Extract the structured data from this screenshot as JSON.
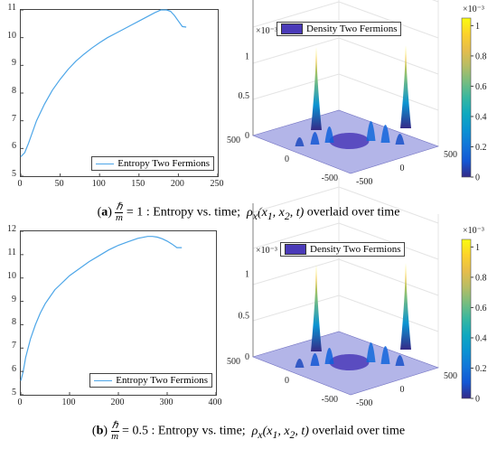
{
  "panels": [
    {
      "caption_label": "a",
      "caption_frac_num": "ℏ",
      "caption_frac_den": "m",
      "caption_value": "= 1",
      "caption_rest": ": Entropy vs. time;",
      "caption_math": "ρ",
      "caption_math_sub": "x",
      "caption_math_args": "(x",
      "caption_math_tail": "1, x2, t)",
      "caption_end": "overlaid over time",
      "caption_full": "(a) ℏ/m = 1 : Entropy vs. time; ρx(x1, x2, t) overlaid over time",
      "line_legend": "Entropy Two Fermions",
      "surface_legend": "Density Two Fermions",
      "colorbar_exponent": "×10⁻³",
      "zaxis_exponent": "×10⁻³"
    },
    {
      "caption_label": "b",
      "caption_frac_num": "ℏ",
      "caption_frac_den": "m",
      "caption_value": "= 0.5",
      "caption_rest": ": Entropy vs. time;",
      "caption_full": "(b) ℏ/m = 0.5 : Entropy vs. time; ρx(x1, x2, t) overlaid over time",
      "caption_end": "overlaid over time",
      "line_legend": "Entropy Two Fermions",
      "surface_legend": "Density Two Fermions",
      "colorbar_exponent": "×10⁻³",
      "zaxis_exponent": "×10⁻³"
    }
  ],
  "chart_data": [
    {
      "type": "line",
      "series": [
        {
          "name": "Entropy Two Fermions",
          "color": "#4da6e8",
          "x": [
            0,
            5,
            10,
            20,
            30,
            40,
            50,
            60,
            70,
            80,
            90,
            100,
            110,
            120,
            130,
            140,
            150,
            160,
            170,
            178,
            185,
            190,
            195,
            200,
            205,
            210
          ],
          "y": [
            5.7,
            5.85,
            6.2,
            7.0,
            7.6,
            8.1,
            8.5,
            8.85,
            9.15,
            9.4,
            9.62,
            9.82,
            10.0,
            10.15,
            10.3,
            10.45,
            10.6,
            10.75,
            10.9,
            11.0,
            11.0,
            10.95,
            10.8,
            10.6,
            10.4,
            10.38
          ]
        }
      ],
      "xlim": [
        0,
        250
      ],
      "ylim": [
        5,
        11
      ],
      "xticks": [
        0,
        50,
        100,
        150,
        200,
        250
      ],
      "yticks": [
        5,
        6,
        7,
        8,
        9,
        10,
        11
      ],
      "legend_position": "bottom-right"
    },
    {
      "type": "surface",
      "series": [
        {
          "name": "Density Two Fermions",
          "color": "#4a3ab8"
        }
      ],
      "x_ticks": [
        "500",
        "0",
        "-500"
      ],
      "y_ticks": [
        "-500",
        "0",
        "500"
      ],
      "z_ticks": [
        "0",
        "0.5",
        "1"
      ],
      "z_exponent": "×10⁻³",
      "colorbar_ticks": [
        "0",
        "0.2",
        "0.4",
        "0.6",
        "0.8",
        "1"
      ],
      "colorbar_exponent": "×10⁻³",
      "clim": [
        0,
        1.05
      ],
      "peak_z": 1.05
    },
    {
      "type": "line",
      "series": [
        {
          "name": "Entropy Two Fermions",
          "color": "#4da6e8",
          "x": [
            0,
            5,
            10,
            20,
            30,
            40,
            50,
            60,
            70,
            80,
            90,
            100,
            120,
            140,
            160,
            180,
            200,
            220,
            240,
            260,
            270,
            280,
            290,
            300,
            310,
            320,
            330
          ],
          "y": [
            5.6,
            6.0,
            6.6,
            7.4,
            8.0,
            8.5,
            8.9,
            9.2,
            9.5,
            9.7,
            9.9,
            10.1,
            10.4,
            10.7,
            10.95,
            11.2,
            11.4,
            11.55,
            11.7,
            11.78,
            11.78,
            11.75,
            11.68,
            11.58,
            11.45,
            11.3,
            11.3
          ]
        }
      ],
      "xlim": [
        0,
        400
      ],
      "ylim": [
        5,
        12
      ],
      "xticks": [
        0,
        100,
        200,
        300,
        400
      ],
      "yticks": [
        5,
        6,
        7,
        8,
        9,
        10,
        11,
        12
      ],
      "legend_position": "bottom-right"
    },
    {
      "type": "surface",
      "series": [
        {
          "name": "Density Two Fermions",
          "color": "#4a3ab8"
        }
      ],
      "x_ticks": [
        "500",
        "0",
        "-500"
      ],
      "y_ticks": [
        "-500",
        "0",
        "500"
      ],
      "z_ticks": [
        "0",
        "0.5",
        "1"
      ],
      "z_exponent": "×10⁻³",
      "colorbar_ticks": [
        "0",
        "0.2",
        "0.4",
        "0.6",
        "0.8",
        "1"
      ],
      "colorbar_exponent": "×10⁻³",
      "clim": [
        0,
        1.05
      ],
      "peak_z": 1.05
    }
  ]
}
